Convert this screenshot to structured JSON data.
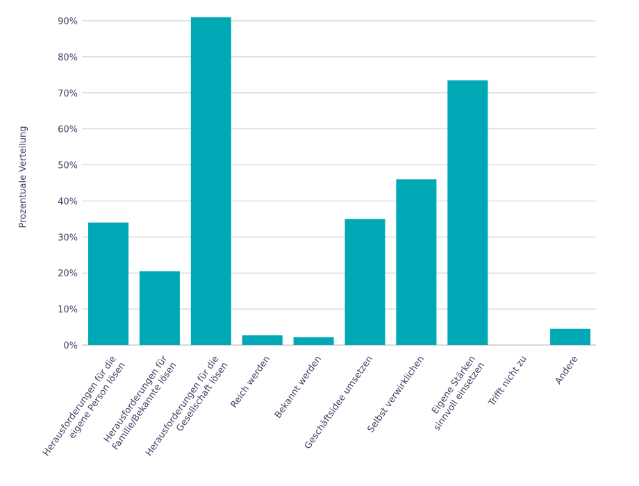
{
  "chart_data": {
    "type": "bar",
    "title": "",
    "xlabel": "",
    "ylabel": "Prozentuale Verteilung",
    "ylim": [
      0,
      90
    ],
    "yticks": [
      "0%",
      "10%",
      "20%",
      "30%",
      "40%",
      "50%",
      "60%",
      "70%",
      "80%",
      "90%"
    ],
    "grid": true,
    "bar_color": "#00a8b5",
    "categories": [
      [
        "Herausforderungen für die",
        "eigene Person lösen"
      ],
      [
        "Herausforderungen für",
        "Familie/Bekannte lösen"
      ],
      [
        "Herausforderungen für die",
        "Gesellschaft lösen"
      ],
      [
        "Reich werden"
      ],
      [
        "Bekannt werden"
      ],
      [
        "Geschäftsidee umsetzen"
      ],
      [
        "Selbst verwirklichen"
      ],
      [
        "Eigene Stärken",
        "sinnvoll einsetzen"
      ],
      [
        "Trifft nicht zu"
      ],
      [
        "Andere"
      ]
    ],
    "values": [
      34,
      20.5,
      91,
      2.7,
      2.2,
      35,
      46,
      73.5,
      0,
      4.5
    ]
  }
}
